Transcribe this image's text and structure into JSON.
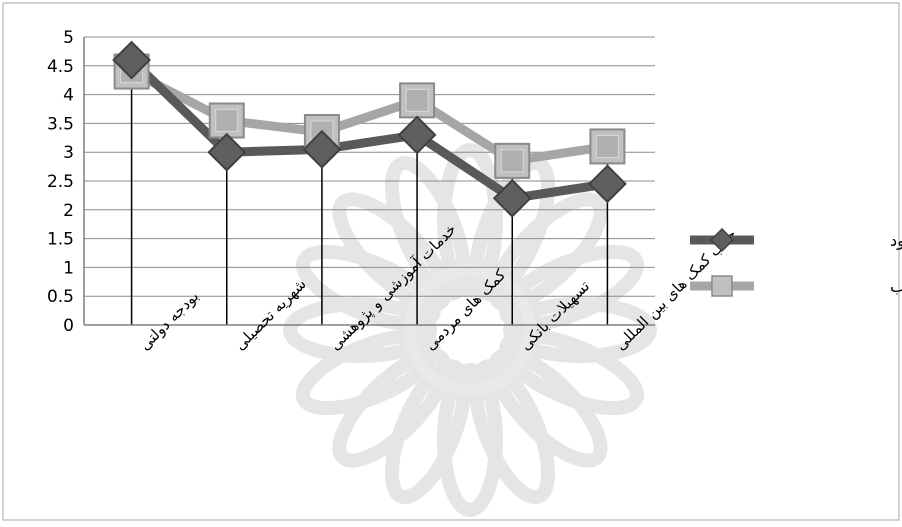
{
  "chart_data": {
    "type": "line",
    "categories": [
      "بودجه دولتی",
      "شهریه تحصیلی",
      "خدمات آموزشی و پژوهشی",
      "کمک های مردمی",
      "تسهیلات بانکی",
      "جذب کمک های بین المللی"
    ],
    "series": [
      {
        "name": "وضعیت موجود",
        "values": [
          4.6,
          3.0,
          3.05,
          3.3,
          2.2,
          2.45
        ],
        "color": "#595959",
        "marker": "diamond"
      },
      {
        "name": "وضعیت مطلوب",
        "values": [
          4.4,
          3.55,
          3.35,
          3.9,
          2.85,
          3.1
        ],
        "color": "#a6a6a6",
        "marker": "square"
      }
    ],
    "yticks": [
      "0",
      "0.5",
      "1",
      "1.5",
      "2",
      "2.5",
      "3",
      "3.5",
      "4",
      "4.5",
      "5"
    ],
    "ylim": [
      0,
      5
    ],
    "grid": true,
    "drop_lines": true,
    "legend_position": "right"
  }
}
